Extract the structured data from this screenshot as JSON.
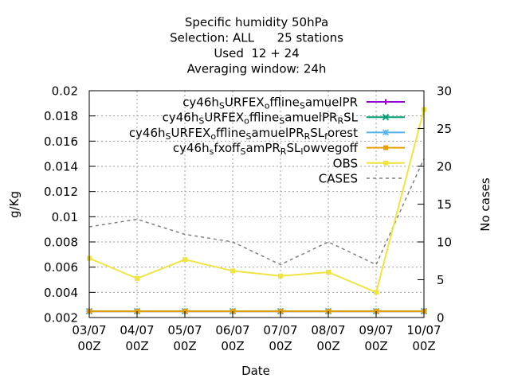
{
  "chart_data": {
    "type": "line",
    "title_lines": [
      "Specific humidity 50hPa",
      "Selection: ALL      25 stations",
      "Used  12 + 24",
      "Averaging window: 24h"
    ],
    "xlabel": "Date",
    "ylabel": "g/Kg",
    "y2label": "No cases",
    "categories": [
      "03/07\n00Z",
      "04/07\n00Z",
      "05/07\n00Z",
      "06/07\n00Z",
      "07/07\n00Z",
      "08/07\n00Z",
      "09/07\n00Z",
      "10/07\n00Z"
    ],
    "ylim": [
      0.002,
      0.02
    ],
    "yticks": [
      "0.002",
      "0.004",
      "0.006",
      "0.008",
      "0.01",
      "0.012",
      "0.014",
      "0.016",
      "0.018",
      "0.02"
    ],
    "y2lim": [
      0,
      30
    ],
    "y2ticks": [
      "0",
      "5",
      "10",
      "15",
      "20",
      "25",
      "30"
    ],
    "grid": true,
    "legend_position": "top-right",
    "series": [
      {
        "name_parts": [
          [
            "cy46h",
            ""
          ],
          [
            "S",
            "sub"
          ],
          [
            "URFEX",
            ""
          ],
          [
            "o",
            "sub"
          ],
          [
            "ffline",
            ""
          ],
          [
            "S",
            "sub"
          ],
          [
            "amuelPR",
            ""
          ]
        ],
        "color": "#9400d3",
        "marker": "plus",
        "axis": "y",
        "values": [
          0.0025,
          0.0025,
          0.0025,
          0.0025,
          0.0025,
          0.0025,
          0.0025,
          0.0025
        ]
      },
      {
        "name_parts": [
          [
            "cy46h",
            ""
          ],
          [
            "S",
            "sub"
          ],
          [
            "URFEX",
            ""
          ],
          [
            "o",
            "sub"
          ],
          [
            "ffline",
            ""
          ],
          [
            "S",
            "sub"
          ],
          [
            "amuelPR",
            ""
          ],
          [
            "R",
            "sub"
          ],
          [
            "SL",
            ""
          ]
        ],
        "color": "#009e73",
        "marker": "cross",
        "axis": "y",
        "values": [
          0.0025,
          0.0025,
          0.0025,
          0.0025,
          0.0025,
          0.0025,
          0.0025,
          0.0025
        ]
      },
      {
        "name_parts": [
          [
            "cy46h",
            ""
          ],
          [
            "S",
            "sub"
          ],
          [
            "URFEX",
            ""
          ],
          [
            "o",
            "sub"
          ],
          [
            "ffline",
            ""
          ],
          [
            "S",
            "sub"
          ],
          [
            "amuelPR",
            ""
          ],
          [
            "R",
            "sub"
          ],
          [
            "SL",
            ""
          ],
          [
            "f",
            "sub"
          ],
          [
            "orest",
            ""
          ]
        ],
        "color": "#56b4e9",
        "marker": "star",
        "axis": "y",
        "values": [
          0.0025,
          0.0025,
          0.0025,
          0.0025,
          0.0025,
          0.0025,
          0.0025,
          0.0025
        ]
      },
      {
        "name_parts": [
          [
            "cy46h",
            ""
          ],
          [
            "s",
            "sub"
          ],
          [
            "fxoff",
            ""
          ],
          [
            "S",
            "sub"
          ],
          [
            "amPR",
            ""
          ],
          [
            "R",
            "sub"
          ],
          [
            "SL",
            ""
          ],
          [
            "l",
            "sub"
          ],
          [
            "owvegoff",
            ""
          ]
        ],
        "color": "#e69f00",
        "marker": "square",
        "axis": "y",
        "values": [
          0.0025,
          0.0025,
          0.0025,
          0.0025,
          0.0025,
          0.0025,
          0.0025,
          0.0025
        ]
      },
      {
        "name": "OBS",
        "color": "#f0e442",
        "marker": "square",
        "axis": "y",
        "values": [
          0.0067,
          0.0051,
          0.0066,
          0.0057,
          0.0053,
          0.0056,
          0.004,
          0.0185
        ]
      },
      {
        "name": "CASES",
        "color": "#808080",
        "marker": "none",
        "dashed": true,
        "axis": "y2",
        "values": [
          12,
          13,
          11,
          10,
          7,
          10,
          7,
          21
        ]
      }
    ]
  }
}
